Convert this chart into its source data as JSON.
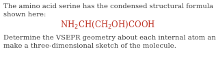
{
  "line1": "The amino acid serine has the condensed structural formula",
  "line2": "shown here:",
  "formula": "NH$_2$CH(CH$_2$OH)COOH",
  "line4": "Determine the VSEPR geometry about each internal atom and",
  "line5": "make a three-dimensional sketch of the molecule.",
  "body_color": "#3d3d3d",
  "formula_color": "#c0392b",
  "bg_color": "#ffffff",
  "body_fontsize": 7.2,
  "formula_fontsize": 8.5,
  "fig_width": 3.16,
  "fig_height": 0.88,
  "dpi": 100
}
